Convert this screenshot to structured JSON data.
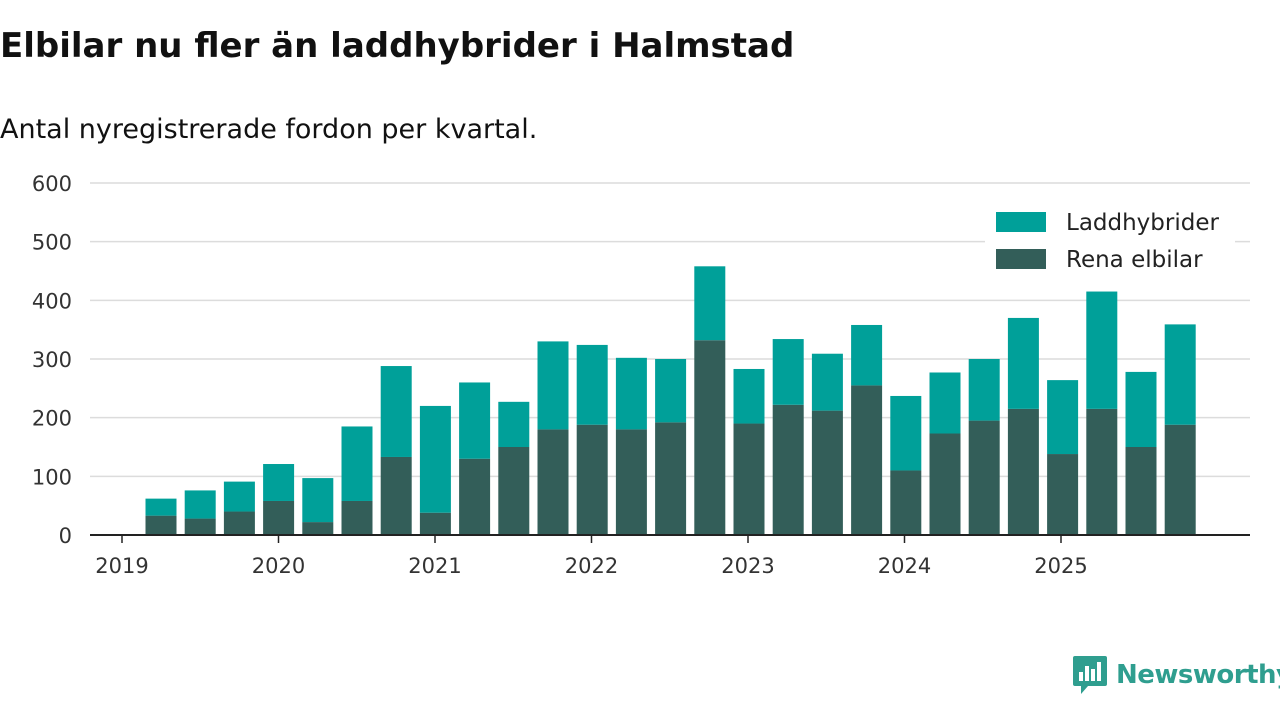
{
  "chart_data": {
    "type": "bar",
    "stacked": true,
    "title": "Elbilar nu fler än laddhybrider i Halmstad",
    "subtitle": "Antal nyregistrerade fordon per kvartal.",
    "xlabel": "",
    "ylabel": "",
    "ylim": [
      0,
      600
    ],
    "yticks": [
      0,
      100,
      200,
      300,
      400,
      500,
      600
    ],
    "xtick_labels": [
      "2019",
      "2020",
      "2021",
      "2022",
      "2023",
      "2024",
      "2025"
    ],
    "grid": true,
    "legend_position": "top-right",
    "categories": [
      "2019 Q2",
      "2019 Q3",
      "2019 Q4",
      "2020 Q1",
      "2020 Q2",
      "2020 Q3",
      "2020 Q4",
      "2021 Q1",
      "2021 Q2",
      "2021 Q3",
      "2021 Q4",
      "2022 Q1",
      "2022 Q2",
      "2022 Q3",
      "2022 Q4",
      "2023 Q1",
      "2023 Q2",
      "2023 Q3",
      "2023 Q4",
      "2024 Q1",
      "2024 Q2",
      "2024 Q3",
      "2024 Q4",
      "2025 Q1",
      "2025 Q2",
      "2025 Q3",
      "2025 Q4"
    ],
    "series": [
      {
        "name": "Rena elbilar",
        "color": "#335e59",
        "values": [
          33,
          28,
          40,
          58,
          22,
          58,
          133,
          38,
          130,
          150,
          180,
          188,
          180,
          192,
          332,
          190,
          222,
          212,
          255,
          110,
          173,
          195,
          215,
          138,
          215,
          150,
          188
        ]
      },
      {
        "name": "Laddhybrider",
        "color": "#00a099",
        "values": [
          29,
          48,
          51,
          63,
          75,
          127,
          155,
          182,
          130,
          77,
          150,
          136,
          122,
          108,
          126,
          93,
          112,
          97,
          103,
          127,
          104,
          105,
          155,
          126,
          200,
          128,
          171
        ]
      }
    ],
    "legend": [
      {
        "name": "Laddhybrider",
        "color": "#00a099"
      },
      {
        "name": "Rena elbilar",
        "color": "#335e59"
      }
    ]
  },
  "logo": {
    "text": "Newsworthy",
    "color": "#2f9e8f"
  }
}
